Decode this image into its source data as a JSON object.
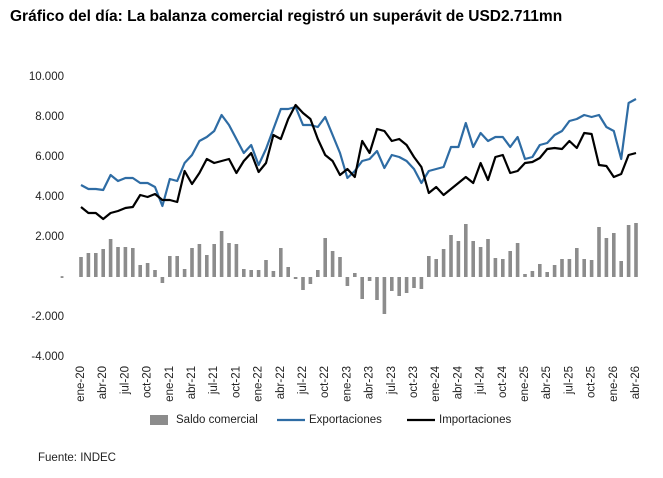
{
  "chart_data": {
    "type": "combo",
    "title": "Gráfico del día: La balanza comercial registró un superávit de USD2.711mn",
    "source": "Fuente: INDEC",
    "categories": [
      "ene-20",
      null,
      null,
      "abr-20",
      null,
      null,
      "jul-20",
      null,
      null,
      "oct-20",
      null,
      null,
      "ene-21",
      null,
      null,
      "abr-21",
      null,
      null,
      "jul-21",
      null,
      null,
      "oct-21",
      null,
      null,
      "ene-22",
      null,
      null,
      "abr-22",
      null,
      null,
      "jul-22",
      null,
      null,
      "oct-22",
      null,
      null,
      "ene-23",
      null,
      null,
      "abr-23",
      null,
      null,
      "jul-23",
      null,
      null,
      "oct-23",
      null,
      null,
      "ene-24",
      null,
      null,
      "abr-24",
      null,
      null,
      "jul-24",
      null,
      null,
      "oct-24",
      null,
      null,
      "ene-25",
      null,
      null,
      "abr-25",
      null,
      null,
      "jul-25",
      null,
      null,
      "oct-25",
      null,
      null,
      "ene-26",
      null,
      null,
      "abr-26"
    ],
    "series": [
      {
        "name": "Saldo comercial",
        "type": "bar",
        "color": "#8c8c8c",
        "values": [
          1000,
          1200,
          1200,
          1400,
          1900,
          1500,
          1500,
          1450,
          600,
          700,
          350,
          -300,
          1050,
          1050,
          400,
          1450,
          1650,
          1100,
          1650,
          2300,
          1700,
          1650,
          400,
          350,
          350,
          850,
          300,
          1450,
          500,
          -100,
          -650,
          -350,
          350,
          1950,
          1300,
          1000,
          -450,
          200,
          -1100,
          -200,
          -1150,
          -1850,
          -700,
          -950,
          -800,
          -550,
          -600,
          1050,
          900,
          1400,
          2100,
          1800,
          2650,
          1800,
          1500,
          1900,
          950,
          900,
          1300,
          1700,
          150,
          300,
          650,
          250,
          600,
          900,
          900,
          1450,
          900,
          850,
          2500,
          1950,
          2200,
          800,
          2600,
          2700
        ]
      },
      {
        "name": "Exportaciones",
        "type": "line",
        "color": "#2e6ca4",
        "values": [
          4600,
          4400,
          4400,
          4350,
          5100,
          4800,
          4950,
          4950,
          4700,
          4700,
          4500,
          3550,
          4900,
          4800,
          5700,
          6100,
          6800,
          7000,
          7300,
          8100,
          7600,
          6900,
          6200,
          6600,
          5600,
          6400,
          7400,
          8400,
          8400,
          8500,
          7600,
          7600,
          7500,
          8000,
          7100,
          6200,
          4950,
          5300,
          5800,
          5900,
          6300,
          5450,
          6100,
          6000,
          5800,
          5400,
          4700,
          5300,
          5400,
          5500,
          6500,
          6500,
          7700,
          6500,
          7200,
          6800,
          7000,
          7000,
          6500,
          7000,
          5900,
          6000,
          6600,
          6700,
          7100,
          7300,
          7800,
          7900,
          8100,
          8000,
          8100,
          7500,
          7300,
          5900,
          8700,
          8900
        ]
      },
      {
        "name": "Importaciones",
        "type": "line",
        "color": "#000000",
        "values": [
          3500,
          3200,
          3200,
          2900,
          3200,
          3300,
          3450,
          3500,
          4100,
          4000,
          4150,
          3850,
          3850,
          3750,
          5300,
          4650,
          5200,
          5900,
          5700,
          5800,
          5900,
          5200,
          5800,
          6200,
          5250,
          5700,
          7100,
          6900,
          7900,
          8600,
          8200,
          7900,
          6900,
          6100,
          5800,
          5100,
          5400,
          5000,
          6800,
          6200,
          7400,
          7300,
          6800,
          6900,
          6600,
          6000,
          5500,
          4200,
          4500,
          4100,
          4400,
          4700,
          5000,
          4700,
          5700,
          4850,
          6000,
          6100,
          5200,
          5300,
          5700,
          5750,
          5950,
          6400,
          6450,
          6400,
          6800,
          6450,
          7200,
          7150,
          5600,
          5550,
          5000,
          5150,
          6100,
          6200
        ]
      }
    ],
    "ylim": [
      -4000,
      10000
    ],
    "yticks": [
      {
        "value": -4000,
        "label": "-4.000"
      },
      {
        "value": -2000,
        "label": "-2.000"
      },
      {
        "value": 0,
        "label": "-"
      },
      {
        "value": 2000,
        "label": "2.000"
      },
      {
        "value": 4000,
        "label": "4.000"
      },
      {
        "value": 6000,
        "label": "6.000"
      },
      {
        "value": 8000,
        "label": "8.000"
      },
      {
        "value": 10000,
        "label": "10.000"
      }
    ],
    "grid": false
  }
}
